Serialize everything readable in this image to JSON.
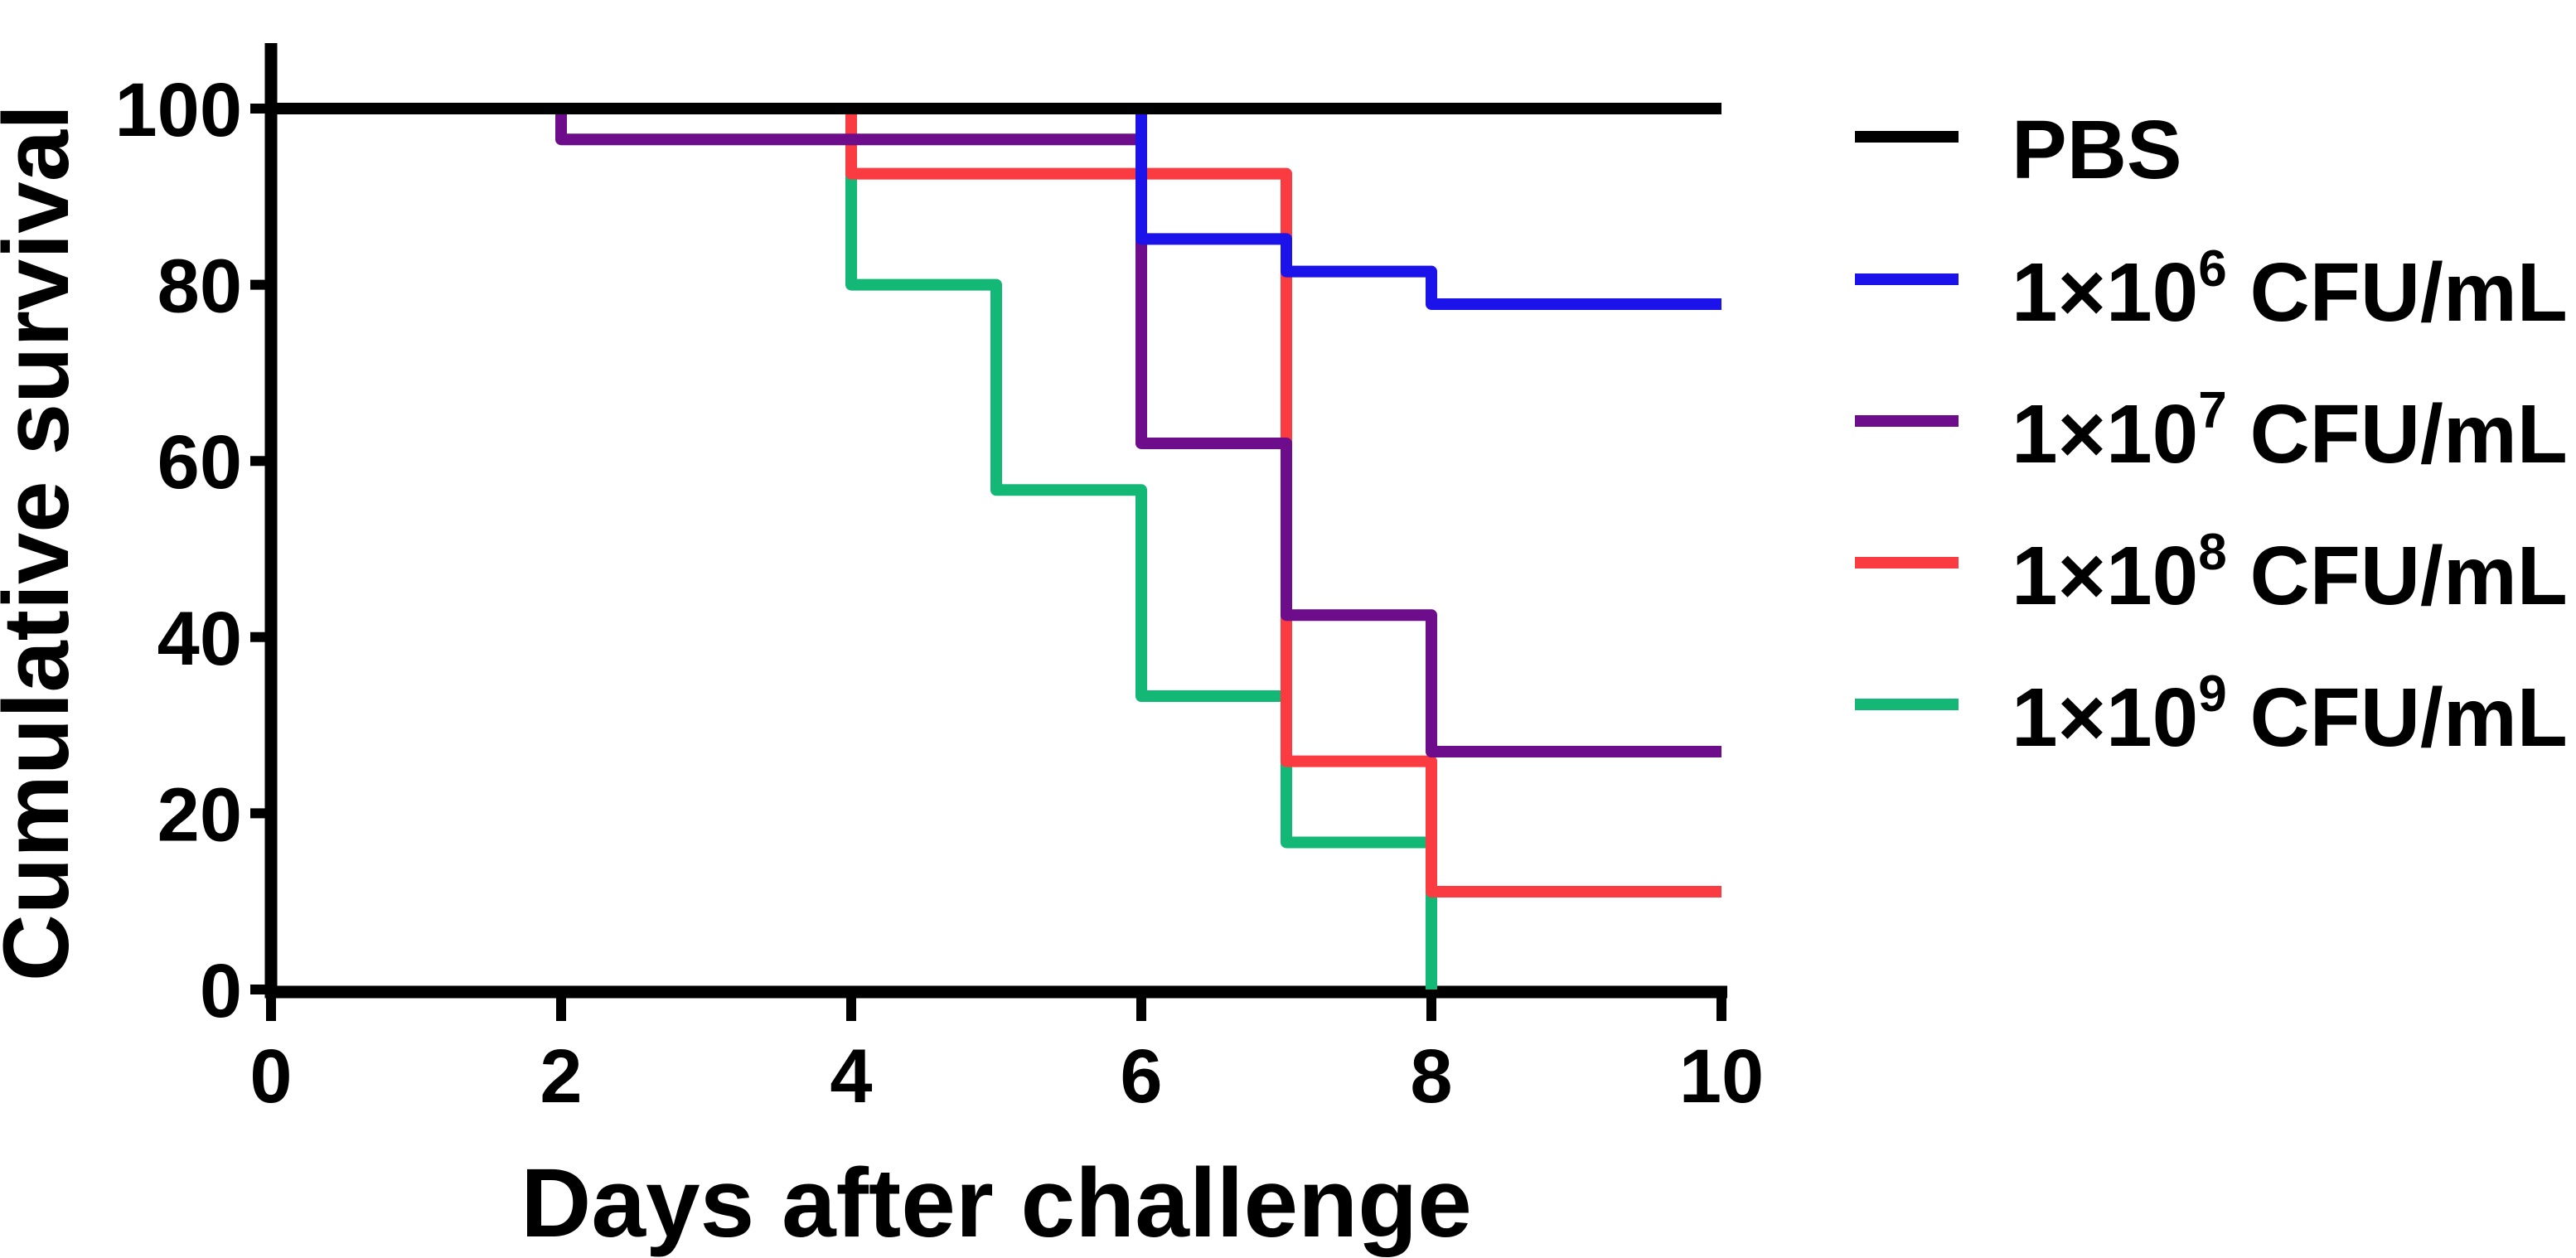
{
  "figure": {
    "background": "#ffffff",
    "axis_color": "#000000"
  },
  "chart_data": {
    "type": "line",
    "variant": "kaplan-meier-step-survival",
    "title": "",
    "xlabel": "Days after challenge",
    "ylabel": "Cumulative survival",
    "xlim": [
      0,
      10
    ],
    "ylim": [
      0,
      100
    ],
    "xticks": [
      0,
      2,
      4,
      6,
      8,
      10
    ],
    "yticks": [
      0,
      20,
      40,
      60,
      80,
      100
    ],
    "grid": false,
    "legend_position": "right-outside",
    "series": [
      {
        "label_base": "PBS",
        "label_exp": "",
        "label_suffix": "",
        "color": "#000000",
        "steps": [
          [
            0,
            100
          ],
          [
            10,
            100
          ]
        ]
      },
      {
        "label_base": "1×10",
        "label_exp": "6",
        "label_suffix": " CFU/mL",
        "color": "#1b13ea",
        "steps": [
          [
            0,
            100
          ],
          [
            6,
            85.2
          ],
          [
            7,
            81.5
          ],
          [
            8,
            77.8
          ],
          [
            10,
            77.8
          ]
        ]
      },
      {
        "label_base": "1×10",
        "label_exp": "7",
        "label_suffix": " CFU/mL",
        "color": "#6e0d8c",
        "steps": [
          [
            0,
            100
          ],
          [
            2,
            96.5
          ],
          [
            6,
            62
          ],
          [
            7,
            42.5
          ],
          [
            8,
            27
          ],
          [
            10,
            27
          ]
        ]
      },
      {
        "label_base": "1×10",
        "label_exp": "8",
        "label_suffix": " CFU/mL",
        "color": "#fa3b42",
        "steps": [
          [
            0,
            100
          ],
          [
            4,
            92.6
          ],
          [
            7,
            25.9
          ],
          [
            8,
            11.1
          ],
          [
            10,
            11.1
          ]
        ]
      },
      {
        "label_base": "1×10",
        "label_exp": "9",
        "label_suffix": " CFU/mL",
        "color": "#13b876",
        "steps": [
          [
            0,
            100
          ],
          [
            4,
            80
          ],
          [
            5,
            56.7
          ],
          [
            6,
            33.3
          ],
          [
            7,
            16.7
          ],
          [
            8,
            0
          ]
        ]
      }
    ],
    "draw_order": [
      4,
      3,
      2,
      1,
      0
    ]
  }
}
